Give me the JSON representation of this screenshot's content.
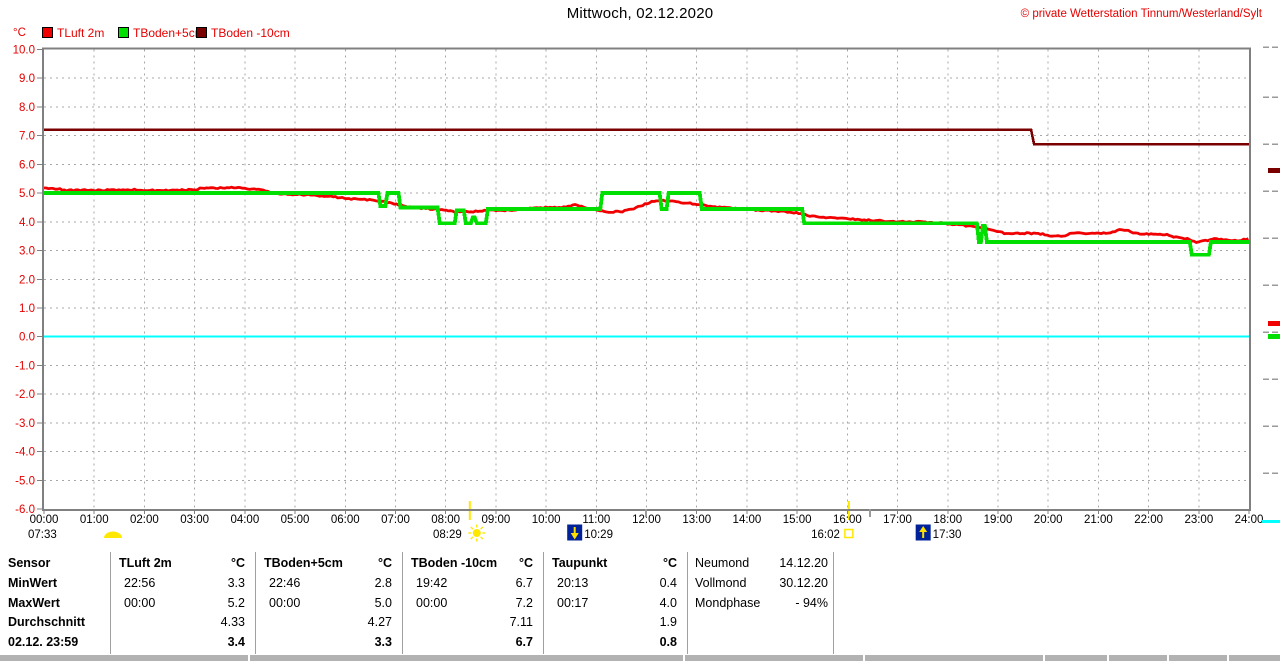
{
  "header": {
    "title": "Mittwoch, 02.12.2020",
    "copyright": "© private Wetterstation Tinnum/Westerland/Sylt"
  },
  "legend": {
    "unit": "°C",
    "items": [
      {
        "label": "TLuft 2m",
        "color": "#f00000"
      },
      {
        "label": "TBoden+5cm",
        "color": "#00df00"
      },
      {
        "label": "TBoden -10cm",
        "color": "#7a0000"
      }
    ]
  },
  "chart_data": {
    "type": "line",
    "title": "Mittwoch, 02.12.2020",
    "ylabel": "°C",
    "ylim": [
      -6,
      10
    ],
    "xlim_hours": [
      0,
      24
    ],
    "grid": true,
    "zero_line_color": "#00ffff",
    "sun_line_color": "#ffe800",
    "y_tick_labels": [
      "10.0",
      "9.0",
      "8.0",
      "7.0",
      "6.0",
      "5.0",
      "4.0",
      "3.0",
      "2.0",
      "1.0",
      "0.0",
      "-1.0",
      "-2.0",
      "-3.0",
      "-4.0",
      "-5.0",
      "-6.0"
    ],
    "x_tick_labels": [
      "00:00",
      "01:00",
      "02:00",
      "03:00",
      "04:00",
      "05:00",
      "06:00",
      "07:00",
      "08:00",
      "09:00",
      "10:00",
      "11:00",
      "12:00",
      "13:00",
      "14:00",
      "15:00",
      "16:00",
      "17:00",
      "18:00",
      "19:00",
      "20:00",
      "21:00",
      "22:00",
      "23:00",
      "24:00"
    ],
    "series": [
      {
        "name": "TBoden -10cm",
        "color": "#7a0000",
        "width": 2.6,
        "noisy": false,
        "points": [
          [
            0,
            7.2
          ],
          [
            19.66,
            7.2
          ],
          [
            19.72,
            6.7
          ],
          [
            24,
            6.7
          ]
        ]
      },
      {
        "name": "TLuft 2m",
        "color": "#f00000",
        "width": 2.8,
        "noisy": true,
        "points": [
          [
            0,
            5.2
          ],
          [
            0.25,
            5.15
          ],
          [
            0.45,
            5.1
          ],
          [
            1.2,
            5.1
          ],
          [
            1.9,
            5.12
          ],
          [
            2.3,
            5.08
          ],
          [
            2.7,
            5.1
          ],
          [
            3.0,
            5.12
          ],
          [
            3.25,
            5.2
          ],
          [
            3.55,
            5.17
          ],
          [
            3.8,
            5.2
          ],
          [
            4.1,
            5.15
          ],
          [
            4.35,
            5.1
          ],
          [
            4.55,
            5.02
          ],
          [
            4.85,
            4.95
          ],
          [
            5.2,
            4.95
          ],
          [
            5.5,
            4.9
          ],
          [
            5.75,
            4.87
          ],
          [
            6.1,
            4.8
          ],
          [
            6.5,
            4.77
          ],
          [
            6.75,
            4.72
          ],
          [
            6.95,
            4.63
          ],
          [
            7.15,
            4.55
          ],
          [
            7.4,
            4.5
          ],
          [
            7.7,
            4.45
          ],
          [
            8.0,
            4.4
          ],
          [
            8.2,
            4.35
          ],
          [
            8.55,
            4.35
          ],
          [
            8.8,
            4.4
          ],
          [
            9.2,
            4.4
          ],
          [
            9.6,
            4.45
          ],
          [
            10.0,
            4.5
          ],
          [
            10.35,
            4.5
          ],
          [
            10.55,
            4.6
          ],
          [
            10.75,
            4.5
          ],
          [
            11.0,
            4.4
          ],
          [
            11.2,
            4.35
          ],
          [
            11.5,
            4.35
          ],
          [
            11.75,
            4.45
          ],
          [
            11.95,
            4.6
          ],
          [
            12.15,
            4.72
          ],
          [
            12.35,
            4.75
          ],
          [
            12.6,
            4.68
          ],
          [
            12.85,
            4.65
          ],
          [
            13.05,
            4.6
          ],
          [
            13.2,
            4.55
          ],
          [
            13.5,
            4.5
          ],
          [
            13.9,
            4.45
          ],
          [
            14.3,
            4.4
          ],
          [
            14.8,
            4.35
          ],
          [
            15.05,
            4.3
          ],
          [
            15.25,
            4.2
          ],
          [
            15.6,
            4.15
          ],
          [
            16.0,
            4.1
          ],
          [
            16.5,
            4.05
          ],
          [
            16.9,
            4.0
          ],
          [
            17.4,
            4.0
          ],
          [
            17.9,
            3.95
          ],
          [
            18.15,
            3.9
          ],
          [
            18.5,
            3.85
          ],
          [
            18.75,
            3.78
          ],
          [
            18.95,
            3.68
          ],
          [
            19.15,
            3.6
          ],
          [
            19.6,
            3.6
          ],
          [
            19.9,
            3.58
          ],
          [
            20.05,
            3.5
          ],
          [
            20.3,
            3.5
          ],
          [
            20.45,
            3.6
          ],
          [
            20.9,
            3.6
          ],
          [
            21.25,
            3.6
          ],
          [
            21.4,
            3.73
          ],
          [
            21.55,
            3.72
          ],
          [
            21.7,
            3.6
          ],
          [
            22.0,
            3.58
          ],
          [
            22.35,
            3.55
          ],
          [
            22.6,
            3.45
          ],
          [
            22.8,
            3.4
          ],
          [
            22.95,
            3.3
          ],
          [
            23.1,
            3.33
          ],
          [
            23.3,
            3.4
          ],
          [
            23.55,
            3.38
          ],
          [
            23.75,
            3.35
          ],
          [
            24,
            3.4
          ]
        ]
      },
      {
        "name": "TBoden+5cm",
        "color": "#00df00",
        "width": 3.8,
        "noisy": false,
        "points": [
          [
            0,
            5.0
          ],
          [
            6.66,
            5.0
          ],
          [
            6.7,
            4.55
          ],
          [
            6.8,
            4.55
          ],
          [
            6.84,
            5.0
          ],
          [
            7.06,
            5.0
          ],
          [
            7.1,
            4.5
          ],
          [
            7.84,
            4.5
          ],
          [
            7.88,
            3.95
          ],
          [
            8.18,
            3.95
          ],
          [
            8.22,
            4.4
          ],
          [
            8.36,
            4.4
          ],
          [
            8.4,
            3.95
          ],
          [
            8.5,
            3.95
          ],
          [
            8.54,
            4.15
          ],
          [
            8.58,
            4.15
          ],
          [
            8.62,
            3.95
          ],
          [
            8.8,
            3.95
          ],
          [
            8.84,
            4.45
          ],
          [
            11.08,
            4.45
          ],
          [
            11.12,
            5.0
          ],
          [
            12.26,
            5.0
          ],
          [
            12.3,
            4.45
          ],
          [
            12.4,
            4.45
          ],
          [
            12.44,
            5.0
          ],
          [
            13.06,
            5.0
          ],
          [
            13.1,
            4.45
          ],
          [
            15.1,
            4.45
          ],
          [
            15.14,
            3.95
          ],
          [
            18.58,
            3.95
          ],
          [
            18.62,
            3.3
          ],
          [
            18.66,
            3.3
          ],
          [
            18.7,
            3.85
          ],
          [
            18.74,
            3.85
          ],
          [
            18.78,
            3.3
          ],
          [
            22.82,
            3.3
          ],
          [
            22.86,
            2.85
          ],
          [
            23.2,
            2.85
          ],
          [
            23.24,
            3.3
          ],
          [
            24,
            3.3
          ]
        ]
      }
    ],
    "events": [
      {
        "label": "07:33",
        "type": "dawn"
      },
      {
        "label": "08:29",
        "type": "sunrise",
        "hour": 8.48
      },
      {
        "label": "10:29",
        "type": "moonset",
        "hour": 10.48
      },
      {
        "label": "16:02",
        "type": "sunset",
        "hour": 16.03
      },
      {
        "label": "17:30",
        "type": "moonrise",
        "hour": 17.5
      }
    ]
  },
  "stats_table": {
    "row_labels": [
      "Sensor",
      "MinWert",
      "MaxWert",
      "Durchschnitt",
      "02.12. 23:59"
    ],
    "unit": "°C",
    "sensors": [
      {
        "name": "TLuft 2m",
        "min_time": "22:56",
        "min": "3.3",
        "max_time": "00:00",
        "max": "5.2",
        "avg": "4.33",
        "current": "3.4"
      },
      {
        "name": "TBoden+5cm",
        "min_time": "22:46",
        "min": "2.8",
        "max_time": "00:00",
        "max": "5.0",
        "avg": "4.27",
        "current": "3.3"
      },
      {
        "name": "TBoden -10cm",
        "min_time": "19:42",
        "min": "6.7",
        "max_time": "00:00",
        "max": "7.2",
        "avg": "7.11",
        "current": "6.7"
      },
      {
        "name": "Taupunkt",
        "min_time": "20:13",
        "min": "0.4",
        "max_time": "00:17",
        "max": "4.0",
        "avg": "1.9",
        "current": "0.8"
      }
    ]
  },
  "moon_panel": {
    "rows": [
      {
        "label": "Neumond",
        "value": "14.12.20"
      },
      {
        "label": "Vollmond",
        "value": "30.12.20"
      },
      {
        "label": "Mondphase",
        "value": "- 94%"
      }
    ]
  }
}
